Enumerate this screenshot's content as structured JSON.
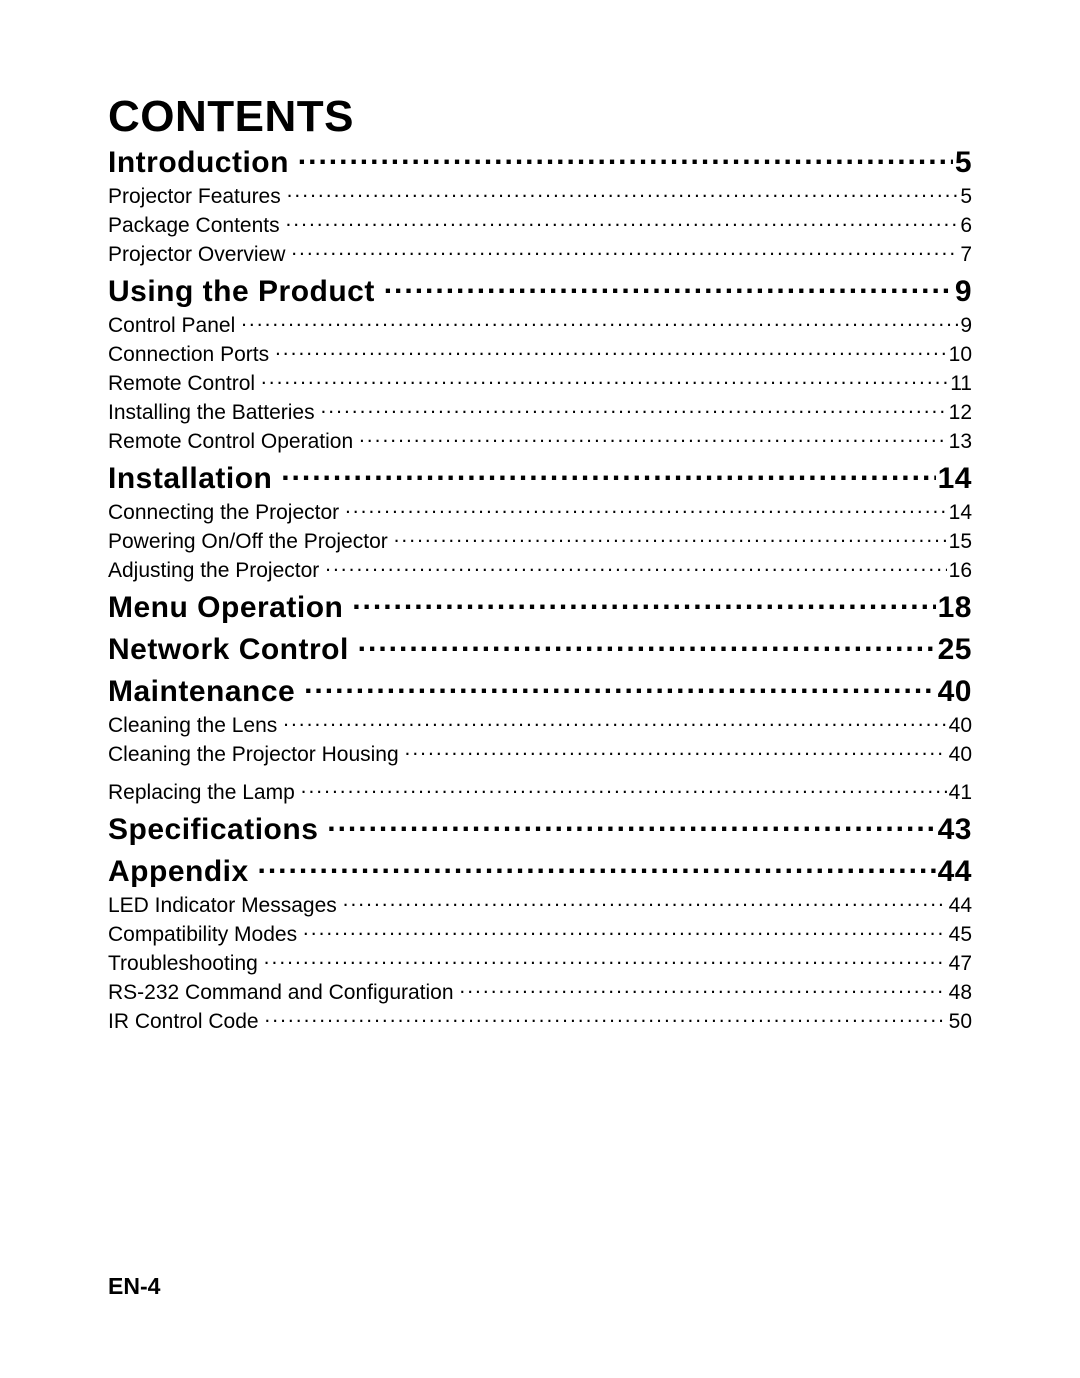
{
  "title": "CONTENTS",
  "footer": "EN-4",
  "colors": {
    "text": "#000000",
    "background": "#ffffff"
  },
  "typography": {
    "title_fontsize": 44,
    "section_fontsize": 30,
    "sub_fontsize": 21,
    "footer_fontsize": 23,
    "heading_weight": 900,
    "body_weight": 400
  },
  "toc": [
    {
      "level": "section",
      "label": "Introduction",
      "page": "5"
    },
    {
      "level": "sub",
      "label": "Projector Features",
      "page": "5"
    },
    {
      "level": "sub",
      "label": "Package Contents",
      "page": "6"
    },
    {
      "level": "sub",
      "label": "Projector Overview",
      "page": "7"
    },
    {
      "level": "section",
      "label": "Using the Product",
      "page": "9"
    },
    {
      "level": "sub",
      "label": "Control Panel",
      "page": "9"
    },
    {
      "level": "sub",
      "label": "Connection Ports",
      "page": "10"
    },
    {
      "level": "sub",
      "label": "Remote Control",
      "page": "11"
    },
    {
      "level": "sub",
      "label": "Installing the Batteries",
      "page": "12"
    },
    {
      "level": "sub",
      "label": "Remote Control Operation",
      "page": "13"
    },
    {
      "level": "section",
      "label": "Installation",
      "page": "14"
    },
    {
      "level": "sub",
      "label": "Connecting the Projector",
      "page": "14"
    },
    {
      "level": "sub",
      "label": "Powering On/Off the Projector",
      "page": "15"
    },
    {
      "level": "sub",
      "label": "Adjusting the Projector",
      "page": "16"
    },
    {
      "level": "section",
      "label": "Menu Operation",
      "page": "18"
    },
    {
      "level": "section",
      "label": "Network Control",
      "page": "25"
    },
    {
      "level": "section",
      "label": "Maintenance",
      "page": "40"
    },
    {
      "level": "sub",
      "label": "Cleaning the Lens",
      "page": "40"
    },
    {
      "level": "sub",
      "label": "Cleaning the Projector Housing",
      "page": "40"
    },
    {
      "level": "sub",
      "gap": true,
      "label": "Replacing the Lamp",
      "page": "41"
    },
    {
      "level": "section",
      "label": "Specifications",
      "page": "43"
    },
    {
      "level": "section",
      "label": "Appendix",
      "page": "44"
    },
    {
      "level": "sub",
      "label": "LED Indicator Messages",
      "page": "44"
    },
    {
      "level": "sub",
      "label": "Compatibility Modes",
      "page": "45"
    },
    {
      "level": "sub",
      "label": "Troubleshooting",
      "page": "47"
    },
    {
      "level": "sub",
      "label": "RS-232 Command and Configuration",
      "page": "48"
    },
    {
      "level": "sub",
      "label": "IR Control Code",
      "page": "50"
    }
  ]
}
